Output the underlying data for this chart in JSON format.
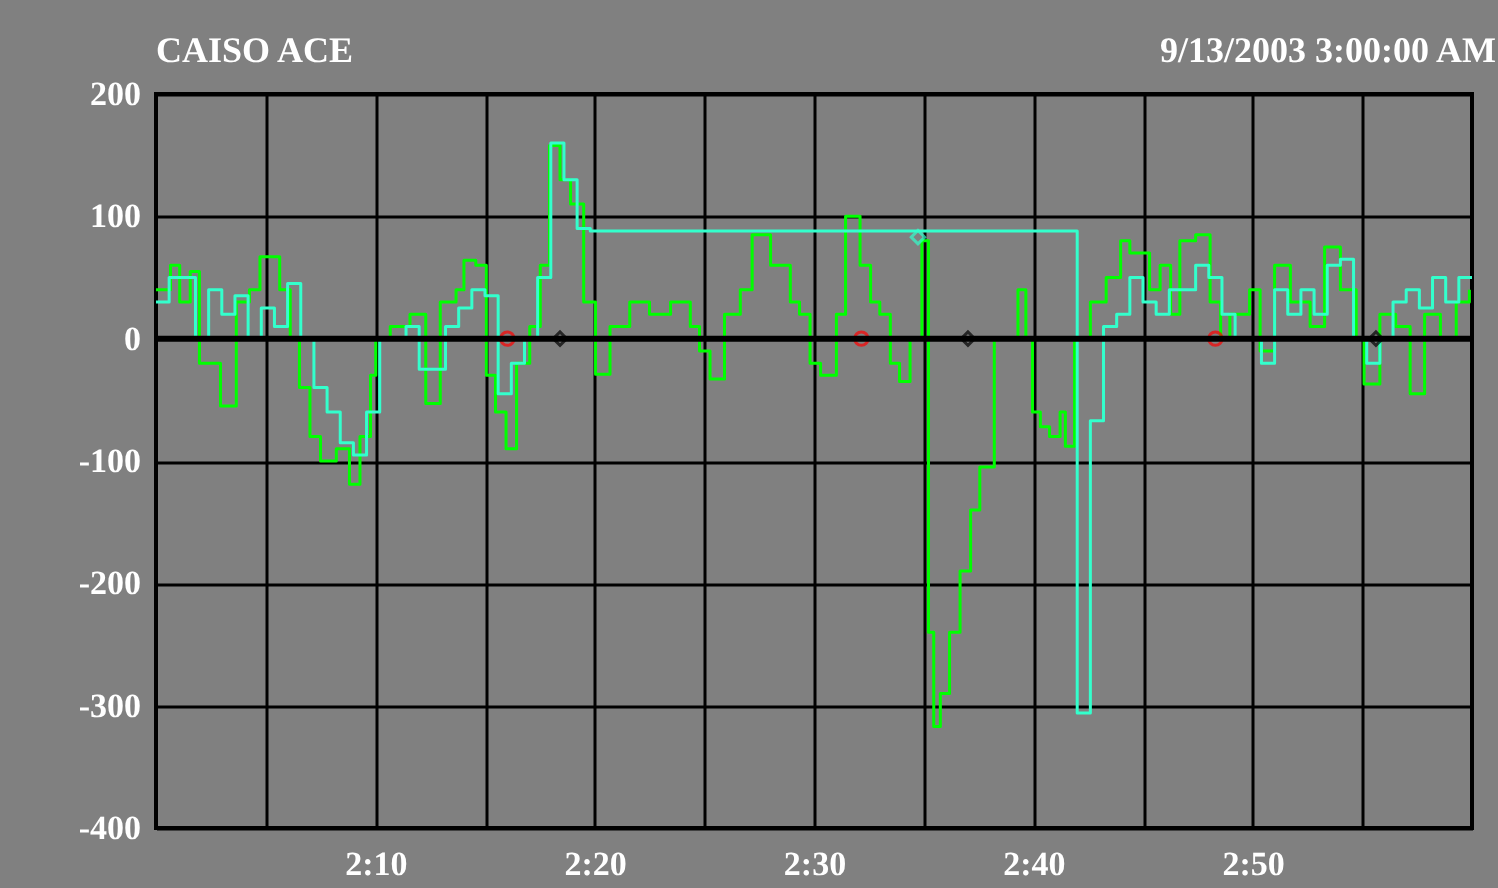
{
  "chart_data": {
    "type": "step",
    "title": "CAISO ACE",
    "subtitle": "9/13/2003 3:00:00 AM",
    "xlim": [
      2.0,
      3.0
    ],
    "xticks": [
      {
        "value": 2.0833,
        "label": null
      },
      {
        "value": 2.1667,
        "label": "2:10"
      },
      {
        "value": 2.25,
        "label": null
      },
      {
        "value": 2.3333,
        "label": "2:20"
      },
      {
        "value": 2.4167,
        "label": null
      },
      {
        "value": 2.5,
        "label": "2:30"
      },
      {
        "value": 2.5833,
        "label": null
      },
      {
        "value": 2.6667,
        "label": "2:40"
      },
      {
        "value": 2.75,
        "label": null
      },
      {
        "value": 2.8333,
        "label": "2:50"
      },
      {
        "value": 2.9167,
        "label": null
      }
    ],
    "ylim": [
      -400,
      200
    ],
    "yticks": [
      -400,
      -300,
      -200,
      -100,
      0,
      100,
      200
    ],
    "grid": true,
    "ref_lines": [
      {
        "axis": "y",
        "value": 0,
        "color": "#000000"
      }
    ],
    "series": [
      {
        "color": "#00ff00",
        "x": [
          2.0,
          2.011,
          2.018,
          2.026,
          2.033,
          2.049,
          2.061,
          2.071,
          2.079,
          2.094,
          2.102,
          2.109,
          2.117,
          2.125,
          2.137,
          2.147,
          2.155,
          2.163,
          2.167,
          2.178,
          2.193,
          2.205,
          2.216,
          2.228,
          2.234,
          2.243,
          2.251,
          2.258,
          2.266,
          2.274,
          2.284,
          2.292,
          2.299,
          2.307,
          2.315,
          2.325,
          2.334,
          2.345,
          2.36,
          2.375,
          2.391,
          2.406,
          2.413,
          2.421,
          2.432,
          2.444,
          2.453,
          2.467,
          2.482,
          2.489,
          2.497,
          2.505,
          2.517,
          2.524,
          2.535,
          2.543,
          2.55,
          2.558,
          2.565,
          2.573,
          2.582,
          2.587,
          2.591,
          2.596,
          2.603,
          2.611,
          2.619,
          2.626,
          2.637,
          2.655,
          2.661,
          2.666,
          2.672,
          2.679,
          2.687,
          2.691,
          2.698,
          2.71,
          2.722,
          2.733,
          2.74,
          2.755,
          2.763,
          2.771,
          2.778,
          2.79,
          2.801,
          2.809,
          2.816,
          2.831,
          2.839,
          2.85,
          2.862,
          2.877,
          2.888,
          2.9,
          2.912,
          2.918,
          2.93,
          2.942,
          2.953,
          2.964,
          2.976,
          2.988,
          2.998
        ],
        "values": [
          40,
          60,
          30,
          55,
          -20,
          -55,
          30,
          40,
          67,
          40,
          0,
          -40,
          -80,
          -100,
          -90,
          -119,
          -80,
          -30,
          0,
          10,
          20,
          -53,
          30,
          40,
          64,
          60,
          -30,
          -60,
          -90,
          -20,
          10,
          60,
          158,
          130,
          110,
          30,
          -29,
          10,
          30,
          20,
          30,
          10,
          -10,
          -33,
          20,
          40,
          85,
          60,
          30,
          20,
          -20,
          -30,
          20,
          100,
          60,
          30,
          20,
          -20,
          -35,
          0,
          80,
          -240,
          -317,
          -290,
          -240,
          -190,
          -140,
          -105,
          0,
          40,
          0,
          -60,
          -72,
          -80,
          -60,
          -88,
          0,
          30,
          50,
          80,
          70,
          40,
          60,
          20,
          80,
          85,
          30,
          0,
          20,
          40,
          -10,
          60,
          30,
          10,
          75,
          40,
          0,
          -37,
          20,
          10,
          -45,
          20,
          0,
          30,
          40
        ]
      },
      {
        "color": "#33ffcc",
        "x": [
          2.0,
          2.01,
          2.02,
          2.03,
          2.04,
          2.05,
          2.06,
          2.07,
          2.08,
          2.09,
          2.1,
          2.11,
          2.12,
          2.13,
          2.14,
          2.15,
          2.16,
          2.17,
          2.18,
          2.19,
          2.2,
          2.21,
          2.22,
          2.23,
          2.24,
          2.25,
          2.26,
          2.27,
          2.28,
          2.29,
          2.3,
          2.31,
          2.32,
          2.33,
          2.69,
          2.7,
          2.71,
          2.72,
          2.73,
          2.74,
          2.75,
          2.76,
          2.77,
          2.78,
          2.79,
          2.8,
          2.81,
          2.82,
          2.83,
          2.84,
          2.85,
          2.86,
          2.87,
          2.88,
          2.89,
          2.9,
          2.91,
          2.92,
          2.93,
          2.94,
          2.95,
          2.96,
          2.97,
          2.98,
          2.99,
          3.0
        ],
        "values": [
          30,
          50,
          50,
          0,
          40,
          20,
          35,
          0,
          25,
          10,
          45,
          0,
          -40,
          -60,
          -85,
          -95,
          -60,
          0,
          0,
          10,
          -25,
          -25,
          10,
          25,
          40,
          35,
          -45,
          -20,
          0,
          50,
          160,
          130,
          90,
          88,
          88,
          -306,
          -67,
          10,
          20,
          50,
          30,
          20,
          40,
          40,
          60,
          50,
          20,
          0,
          0,
          -20,
          40,
          20,
          40,
          20,
          60,
          65,
          0,
          -20,
          0,
          30,
          40,
          25,
          50,
          30,
          50,
          50
        ]
      },
      {
        "type": "scatter",
        "color": "#ff0000",
        "marker": "circle",
        "x": [
          2.267,
          2.536,
          2.805
        ],
        "values": [
          0,
          0,
          0
        ]
      },
      {
        "type": "scatter",
        "color": "#000000",
        "marker": "diamond",
        "x": [
          2.307,
          2.617,
          2.927
        ],
        "values": [
          0,
          0,
          0
        ]
      },
      {
        "type": "scatter",
        "color": "#33ffcc",
        "marker": "diamond",
        "x": [
          2.579
        ],
        "values": [
          83
        ]
      }
    ]
  }
}
